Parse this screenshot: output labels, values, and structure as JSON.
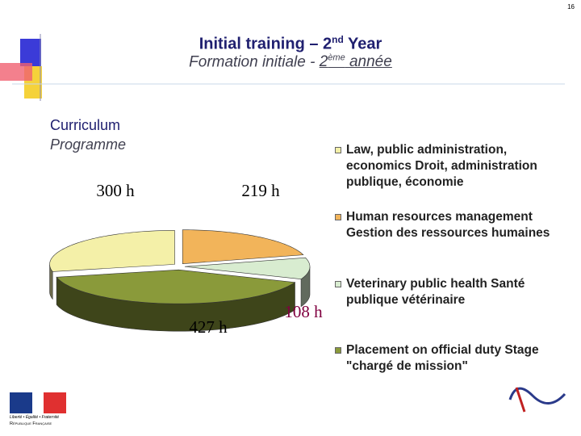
{
  "slide": {
    "number": "16",
    "title_parts": [
      "Initial training – 2",
      "nd",
      " Year"
    ],
    "subtitle_parts": [
      "Formation initiale - ",
      "2",
      "ème",
      " année"
    ],
    "section_en": "Curriculum",
    "section_fr": "Programme",
    "logo_motto": "Liberté • Égalité • Fraternité",
    "logo_name": "République Française"
  },
  "chart_data": {
    "type": "pie",
    "categories": [
      "Law, public administration, economics Droit, administration publique, économie",
      "Human resources management Gestion des ressources humaines",
      "Veterinary public health Santé publique vétérinaire",
      "Placement on official duty Stage \"chargé de mission\""
    ],
    "values": [
      300,
      219,
      108,
      427
    ],
    "value_labels": [
      "300 h",
      "219 h",
      "108 h",
      "427 h"
    ],
    "colors": [
      "#f4f0a8",
      "#f2b45a",
      "#d8ecd0",
      "#8a9a3a"
    ],
    "legend": "right"
  }
}
